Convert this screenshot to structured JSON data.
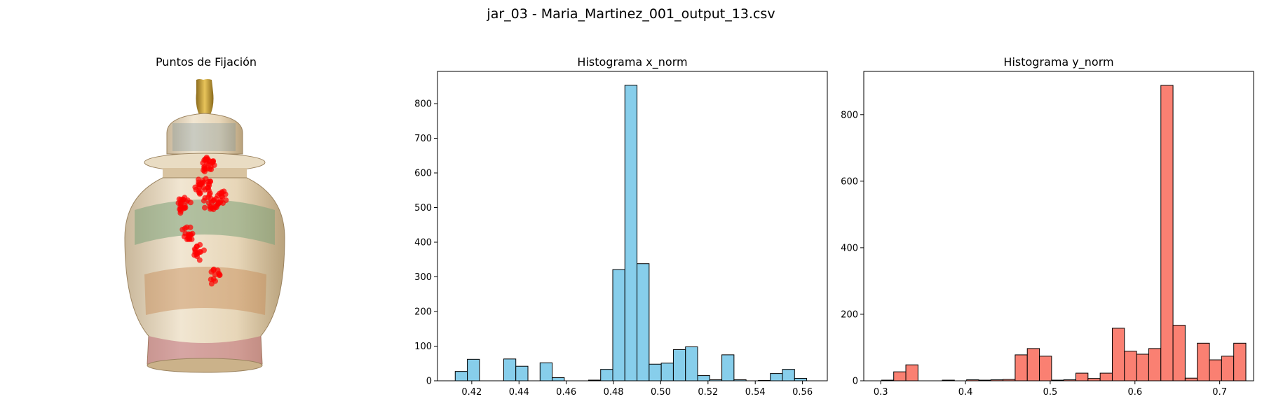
{
  "figure": {
    "suptitle": "jar_03 - Maria_Martinez_001_output_13.csv"
  },
  "image_panel": {
    "title": "Puntos de Fijación",
    "fixation_color": "#ff0000"
  },
  "chart_data": [
    {
      "type": "bar",
      "title": "Histograma x_norm",
      "xlabel": "",
      "ylabel": "",
      "xlim": [
        0.4055,
        0.5705
      ],
      "ylim": [
        0,
        893
      ],
      "xticks": [
        0.42,
        0.44,
        0.46,
        0.48,
        0.5,
        0.52,
        0.54,
        0.56
      ],
      "xtick_labels": [
        "0.42",
        "0.44",
        "0.46",
        "0.48",
        "0.50",
        "0.52",
        "0.54",
        "0.56"
      ],
      "yticks": [
        0,
        100,
        200,
        300,
        400,
        500,
        600,
        700,
        800
      ],
      "ytick_labels": [
        "0",
        "100",
        "200",
        "300",
        "400",
        "500",
        "600",
        "700",
        "800"
      ],
      "bar_color": "#87ceeb",
      "edge_color": "#000000",
      "bin_start": 0.413,
      "bin_width": 0.00513,
      "values": [
        27,
        62,
        0,
        0,
        63,
        42,
        0,
        52,
        9,
        0,
        0,
        2,
        33,
        321,
        853,
        338,
        48,
        51,
        90,
        98,
        15,
        3,
        75,
        3,
        0,
        1,
        21,
        33,
        7
      ]
    },
    {
      "type": "bar",
      "title": "Histograma y_norm",
      "xlabel": "",
      "ylabel": "",
      "xlim": [
        0.28,
        0.74
      ],
      "ylim": [
        0,
        930
      ],
      "xticks": [
        0.3,
        0.4,
        0.5,
        0.6,
        0.7
      ],
      "xtick_labels": [
        "0.3",
        "0.4",
        "0.5",
        "0.6",
        "0.7"
      ],
      "yticks": [
        0,
        200,
        400,
        600,
        800
      ],
      "ytick_labels": [
        "0",
        "200",
        "400",
        "600",
        "800"
      ],
      "bar_color": "#fa8072",
      "edge_color": "#000000",
      "bin_start": 0.301,
      "bin_width": 0.01433,
      "values": [
        2,
        27,
        48,
        0,
        0,
        2,
        0,
        3,
        2,
        3,
        4,
        78,
        97,
        74,
        2,
        3,
        23,
        7,
        23,
        158,
        89,
        80,
        97,
        888,
        167,
        8,
        113,
        63,
        74,
        113
      ]
    }
  ]
}
